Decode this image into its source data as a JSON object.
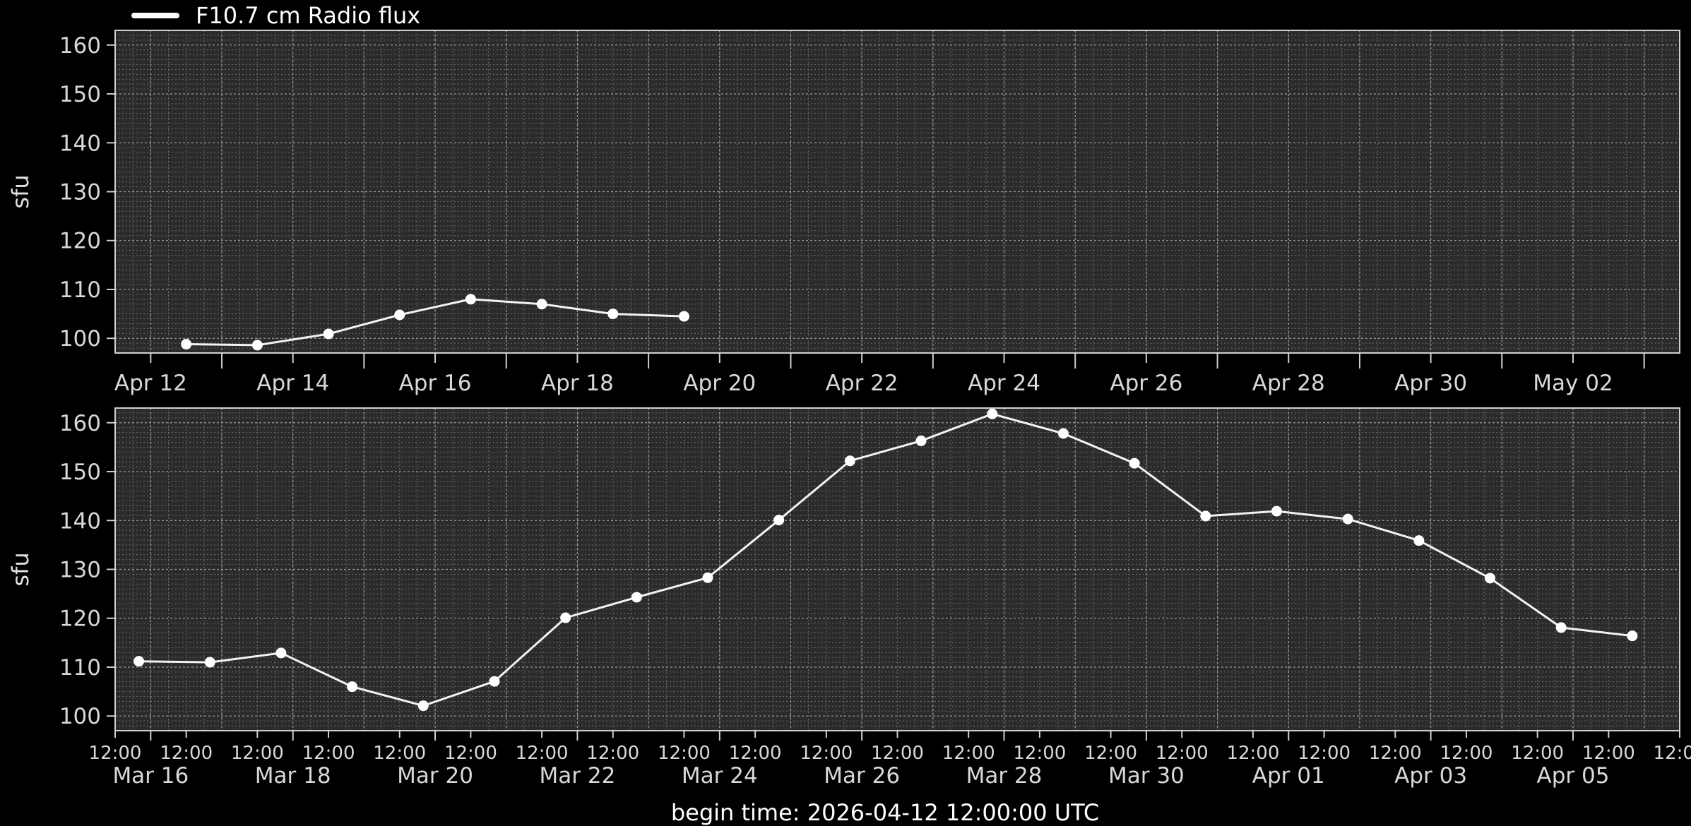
{
  "chart_data": [
    {
      "type": "line",
      "id": "forecast",
      "title": "",
      "xlabel": "",
      "ylabel": "sfu",
      "legend": {
        "label": "F10.7 cm Radio flux",
        "placement": "top-left"
      },
      "grid": true,
      "ylim": [
        97,
        163
      ],
      "xlim": [
        "2026-04-11T12:00",
        "2026-05-03T12:00"
      ],
      "yticks": [
        100,
        110,
        120,
        130,
        140,
        150,
        160
      ],
      "xticks_major": [
        "Apr 12",
        "Apr 14",
        "Apr 16",
        "Apr 18",
        "Apr 20",
        "Apr 22",
        "Apr 24",
        "Apr 26",
        "Apr 28",
        "Apr 30",
        "May 02"
      ],
      "x": [
        "2026-04-12T12:00",
        "2026-04-13T12:00",
        "2026-04-14T12:00",
        "2026-04-15T12:00",
        "2026-04-16T12:00",
        "2026-04-17T12:00",
        "2026-04-18T12:00",
        "2026-04-19T12:00"
      ],
      "values": [
        98.8,
        98.6,
        100.9,
        104.8,
        108.0,
        107.0,
        105.0,
        104.5
      ]
    },
    {
      "type": "line",
      "id": "observed",
      "title": "",
      "xlabel": "",
      "ylabel": "sfu",
      "grid": true,
      "ylim": [
        97,
        163
      ],
      "xlim": [
        "2026-03-15T12:00",
        "2026-04-06T12:00"
      ],
      "yticks": [
        100,
        110,
        120,
        130,
        140,
        150,
        160
      ],
      "xticks_minor": [
        "12:00",
        "12:00",
        "12:00",
        "12:00",
        "12:00",
        "12:00",
        "12:00",
        "12:00",
        "12:00",
        "12:00",
        "12:00",
        "12:00",
        "12:00",
        "12:00",
        "12:00",
        "12:00",
        "12:00",
        "12:00",
        "12:00",
        "12:00",
        "12:00",
        "12:00",
        "12:00"
      ],
      "xticks_major": [
        "Mar 16",
        "Mar 18",
        "Mar 20",
        "Mar 22",
        "Mar 24",
        "Mar 26",
        "Mar 28",
        "Mar 30",
        "Apr 01",
        "Apr 03",
        "Apr 05"
      ],
      "x": [
        "2026-03-15T20:00",
        "2026-03-16T20:00",
        "2026-03-17T20:00",
        "2026-03-18T20:00",
        "2026-03-19T20:00",
        "2026-03-20T20:00",
        "2026-03-21T20:00",
        "2026-03-22T20:00",
        "2026-03-23T20:00",
        "2026-03-24T20:00",
        "2026-03-25T20:00",
        "2026-03-26T20:00",
        "2026-03-27T20:00",
        "2026-03-28T20:00",
        "2026-03-29T20:00",
        "2026-03-30T20:00",
        "2026-03-31T20:00",
        "2026-04-01T20:00",
        "2026-04-02T20:00",
        "2026-04-03T20:00",
        "2026-04-04T20:00",
        "2026-04-05T20:00"
      ],
      "values": [
        111.2,
        111.0,
        112.9,
        106.0,
        102.1,
        107.1,
        120.1,
        124.3,
        128.3,
        140.1,
        152.2,
        156.3,
        161.8,
        157.8,
        151.7,
        140.9,
        141.9,
        140.3,
        135.9,
        128.2,
        118.1,
        116.4
      ]
    }
  ],
  "footer": {
    "text": "begin time: 2026-04-12 12:00:00 UTC"
  }
}
